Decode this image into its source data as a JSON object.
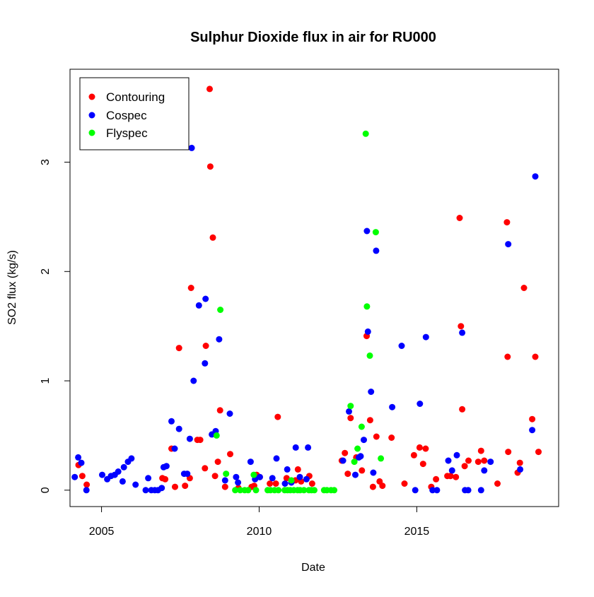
{
  "chart_data": {
    "type": "scatter",
    "title": "Sulphur Dioxide flux in air for RU000",
    "xlabel": "Date",
    "ylabel": "SO2 flux (kg/s)",
    "x_unit": "decimal year",
    "xlim": [
      2004.0,
      2019.5
    ],
    "ylim": [
      -0.15,
      3.85
    ],
    "x_ticks": [
      2005,
      2010,
      2015
    ],
    "y_ticks": [
      0,
      1,
      2,
      3
    ],
    "grid": false,
    "legend_position": "top-left",
    "series": [
      {
        "name": "Contouring",
        "color": "#ff0000",
        "points": [
          [
            2004.27,
            0.23
          ],
          [
            2004.39,
            0.13
          ],
          [
            2004.53,
            0.05
          ],
          [
            2006.93,
            0.11
          ],
          [
            2007.02,
            0.1
          ],
          [
            2007.22,
            0.38
          ],
          [
            2007.33,
            0.03
          ],
          [
            2007.46,
            1.3
          ],
          [
            2007.65,
            0.04
          ],
          [
            2007.8,
            0.11
          ],
          [
            2007.84,
            1.85
          ],
          [
            2008.04,
            0.46
          ],
          [
            2008.13,
            0.46
          ],
          [
            2008.28,
            0.2
          ],
          [
            2008.31,
            1.32
          ],
          [
            2008.43,
            3.67
          ],
          [
            2008.45,
            2.96
          ],
          [
            2008.53,
            2.31
          ],
          [
            2008.6,
            0.13
          ],
          [
            2008.69,
            0.26
          ],
          [
            2008.76,
            0.73
          ],
          [
            2008.92,
            0.03
          ],
          [
            2009.08,
            0.33
          ],
          [
            2009.34,
            0.02
          ],
          [
            2009.76,
            0.03
          ],
          [
            2009.84,
            0.04
          ],
          [
            2009.92,
            0.14
          ],
          [
            2010.02,
            0.12
          ],
          [
            2010.34,
            0.06
          ],
          [
            2010.53,
            0.06
          ],
          [
            2010.59,
            0.67
          ],
          [
            2010.87,
            0.11
          ],
          [
            2011.15,
            0.09
          ],
          [
            2011.23,
            0.19
          ],
          [
            2011.33,
            0.08
          ],
          [
            2011.59,
            0.13
          ],
          [
            2011.68,
            0.06
          ],
          [
            2012.62,
            0.27
          ],
          [
            2012.72,
            0.34
          ],
          [
            2012.81,
            0.15
          ],
          [
            2012.9,
            0.66
          ],
          [
            2013.08,
            0.3
          ],
          [
            2013.26,
            0.18
          ],
          [
            2013.41,
            1.41
          ],
          [
            2013.52,
            0.64
          ],
          [
            2013.61,
            0.03
          ],
          [
            2013.72,
            0.49
          ],
          [
            2013.82,
            0.08
          ],
          [
            2013.91,
            0.04
          ],
          [
            2014.2,
            0.48
          ],
          [
            2014.61,
            0.06
          ],
          [
            2014.91,
            0.32
          ],
          [
            2015.09,
            0.39
          ],
          [
            2015.2,
            0.24
          ],
          [
            2015.28,
            0.38
          ],
          [
            2015.46,
            0.03
          ],
          [
            2015.61,
            0.1
          ],
          [
            2015.97,
            0.13
          ],
          [
            2016.07,
            0.13
          ],
          [
            2016.24,
            0.12
          ],
          [
            2016.36,
            2.49
          ],
          [
            2016.4,
            1.5
          ],
          [
            2016.44,
            0.74
          ],
          [
            2016.52,
            0.22
          ],
          [
            2016.64,
            0.27
          ],
          [
            2016.95,
            0.26
          ],
          [
            2017.04,
            0.36
          ],
          [
            2017.14,
            0.27
          ],
          [
            2017.56,
            0.06
          ],
          [
            2017.86,
            2.45
          ],
          [
            2017.88,
            1.22
          ],
          [
            2017.9,
            0.35
          ],
          [
            2018.2,
            0.16
          ],
          [
            2018.27,
            0.25
          ],
          [
            2018.4,
            1.85
          ],
          [
            2018.66,
            0.65
          ],
          [
            2018.76,
            1.22
          ],
          [
            2018.86,
            0.35
          ]
        ]
      },
      {
        "name": "Cospec",
        "color": "#0000ff",
        "points": [
          [
            2004.15,
            0.12
          ],
          [
            2004.26,
            0.3
          ],
          [
            2004.36,
            0.25
          ],
          [
            2004.52,
            0.0
          ],
          [
            2005.02,
            0.14
          ],
          [
            2005.18,
            0.1
          ],
          [
            2005.3,
            0.13
          ],
          [
            2005.42,
            0.14
          ],
          [
            2005.53,
            0.17
          ],
          [
            2005.67,
            0.08
          ],
          [
            2005.71,
            0.21
          ],
          [
            2005.84,
            0.26
          ],
          [
            2005.95,
            0.29
          ],
          [
            2006.08,
            0.05
          ],
          [
            2006.4,
            0.0
          ],
          [
            2006.48,
            0.11
          ],
          [
            2006.58,
            0.0
          ],
          [
            2006.69,
            0.0
          ],
          [
            2006.79,
            0.0
          ],
          [
            2006.91,
            0.02
          ],
          [
            2006.97,
            0.21
          ],
          [
            2007.06,
            0.22
          ],
          [
            2007.22,
            0.63
          ],
          [
            2007.32,
            0.38
          ],
          [
            2007.46,
            0.56
          ],
          [
            2007.62,
            0.15
          ],
          [
            2007.72,
            0.15
          ],
          [
            2007.8,
            0.47
          ],
          [
            2007.86,
            3.13
          ],
          [
            2007.92,
            1.0
          ],
          [
            2008.09,
            1.69
          ],
          [
            2008.28,
            1.16
          ],
          [
            2008.3,
            1.75
          ],
          [
            2008.5,
            0.51
          ],
          [
            2008.62,
            0.54
          ],
          [
            2008.73,
            1.38
          ],
          [
            2008.92,
            0.09
          ],
          [
            2009.07,
            0.7
          ],
          [
            2009.27,
            0.12
          ],
          [
            2009.33,
            0.07
          ],
          [
            2009.73,
            0.26
          ],
          [
            2009.87,
            0.1
          ],
          [
            2010.02,
            0.12
          ],
          [
            2010.42,
            0.11
          ],
          [
            2010.55,
            0.29
          ],
          [
            2010.82,
            0.06
          ],
          [
            2010.89,
            0.19
          ],
          [
            2011.02,
            0.07
          ],
          [
            2011.16,
            0.39
          ],
          [
            2011.29,
            0.12
          ],
          [
            2011.5,
            0.1
          ],
          [
            2011.55,
            0.39
          ],
          [
            2012.66,
            0.27
          ],
          [
            2012.85,
            0.72
          ],
          [
            2013.05,
            0.14
          ],
          [
            2013.16,
            0.3
          ],
          [
            2013.22,
            0.31
          ],
          [
            2013.32,
            0.46
          ],
          [
            2013.42,
            2.37
          ],
          [
            2013.45,
            1.45
          ],
          [
            2013.55,
            0.9
          ],
          [
            2013.62,
            0.16
          ],
          [
            2013.71,
            2.19
          ],
          [
            2014.22,
            0.76
          ],
          [
            2014.52,
            1.32
          ],
          [
            2014.95,
            0.0
          ],
          [
            2015.1,
            0.79
          ],
          [
            2015.29,
            1.4
          ],
          [
            2015.5,
            0.0
          ],
          [
            2015.64,
            0.0
          ],
          [
            2016.0,
            0.27
          ],
          [
            2016.12,
            0.18
          ],
          [
            2016.27,
            0.32
          ],
          [
            2016.44,
            1.44
          ],
          [
            2016.53,
            0.0
          ],
          [
            2016.63,
            0.0
          ],
          [
            2017.04,
            0.0
          ],
          [
            2017.14,
            0.18
          ],
          [
            2017.34,
            0.26
          ],
          [
            2017.9,
            2.25
          ],
          [
            2018.28,
            0.19
          ],
          [
            2018.66,
            0.55
          ],
          [
            2018.76,
            2.87
          ]
        ]
      },
      {
        "name": "Flyspec",
        "color": "#00ff00",
        "points": [
          [
            2008.65,
            0.5
          ],
          [
            2008.77,
            1.65
          ],
          [
            2008.95,
            0.15
          ],
          [
            2009.24,
            0.0
          ],
          [
            2009.4,
            0.0
          ],
          [
            2009.54,
            0.0
          ],
          [
            2009.65,
            0.0
          ],
          [
            2009.83,
            0.14
          ],
          [
            2009.9,
            0.0
          ],
          [
            2010.27,
            0.0
          ],
          [
            2010.36,
            0.0
          ],
          [
            2010.49,
            0.0
          ],
          [
            2010.61,
            0.0
          ],
          [
            2010.81,
            0.0
          ],
          [
            2010.9,
            0.0
          ],
          [
            2010.99,
            0.0
          ],
          [
            2011.02,
            0.09
          ],
          [
            2011.1,
            0.0
          ],
          [
            2011.22,
            0.0
          ],
          [
            2011.3,
            0.0
          ],
          [
            2011.42,
            0.0
          ],
          [
            2011.58,
            0.0
          ],
          [
            2011.66,
            0.0
          ],
          [
            2011.75,
            0.0
          ],
          [
            2012.06,
            0.0
          ],
          [
            2012.15,
            0.0
          ],
          [
            2012.28,
            0.0
          ],
          [
            2012.38,
            0.0
          ],
          [
            2012.9,
            0.77
          ],
          [
            2013.02,
            0.26
          ],
          [
            2013.12,
            0.38
          ],
          [
            2013.25,
            0.58
          ],
          [
            2013.38,
            3.26
          ],
          [
            2013.42,
            1.68
          ],
          [
            2013.51,
            1.23
          ],
          [
            2013.7,
            2.36
          ],
          [
            2013.86,
            0.29
          ]
        ]
      }
    ]
  }
}
